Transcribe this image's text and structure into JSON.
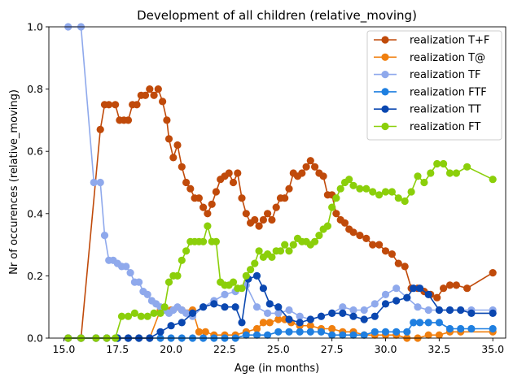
{
  "chart_data": {
    "type": "line",
    "title": "Development of all children (relative_moving)",
    "xlabel": "Age (in months)",
    "ylabel": "Nr of occurences (relative_moving)",
    "xlim": [
      14.3,
      35.6
    ],
    "ylim": [
      0.0,
      1.0
    ],
    "xticks": [
      15.0,
      17.5,
      20.0,
      22.5,
      25.0,
      27.5,
      30.0,
      32.5,
      35.0
    ],
    "xtick_labels": [
      "15.0",
      "17.5",
      "20.0",
      "22.5",
      "25.0",
      "27.5",
      "30.0",
      "32.5",
      "35.0"
    ],
    "yticks": [
      0.0,
      0.2,
      0.4,
      0.6,
      0.8,
      1.0
    ],
    "ytick_labels": [
      "0.0",
      "0.2",
      "0.4",
      "0.6",
      "0.8",
      "1.0"
    ],
    "grid": false,
    "legend_position": "top-right",
    "series": [
      {
        "name": "realization T+F",
        "color": "#c04a0a",
        "x": [
          15.2,
          15.8,
          16.7,
          16.9,
          17.1,
          17.4,
          17.6,
          17.8,
          18.0,
          18.2,
          18.4,
          18.6,
          18.8,
          19.0,
          19.2,
          19.4,
          19.6,
          19.8,
          19.9,
          20.1,
          20.3,
          20.5,
          20.7,
          20.9,
          21.1,
          21.3,
          21.5,
          21.7,
          21.9,
          22.1,
          22.3,
          22.5,
          22.7,
          22.9,
          23.1,
          23.3,
          23.5,
          23.7,
          23.9,
          24.1,
          24.3,
          24.5,
          24.7,
          24.9,
          25.1,
          25.3,
          25.5,
          25.7,
          25.9,
          26.1,
          26.3,
          26.5,
          26.7,
          26.9,
          27.1,
          27.3,
          27.5,
          27.7,
          27.9,
          28.1,
          28.3,
          28.5,
          28.8,
          29.1,
          29.4,
          29.7,
          30.0,
          30.3,
          30.6,
          30.9,
          31.2,
          31.5,
          31.8,
          32.1,
          32.4,
          32.7,
          33.0,
          33.3,
          33.8,
          35.0
        ],
        "y": [
          0.0,
          0.0,
          0.67,
          0.75,
          0.75,
          0.75,
          0.7,
          0.7,
          0.7,
          0.75,
          0.75,
          0.78,
          0.78,
          0.8,
          0.78,
          0.8,
          0.76,
          0.7,
          0.64,
          0.58,
          0.62,
          0.55,
          0.5,
          0.48,
          0.45,
          0.45,
          0.42,
          0.4,
          0.43,
          0.47,
          0.51,
          0.52,
          0.53,
          0.5,
          0.53,
          0.45,
          0.4,
          0.37,
          0.38,
          0.36,
          0.38,
          0.4,
          0.38,
          0.42,
          0.45,
          0.45,
          0.48,
          0.53,
          0.52,
          0.53,
          0.55,
          0.57,
          0.55,
          0.53,
          0.52,
          0.46,
          0.46,
          0.4,
          0.38,
          0.37,
          0.35,
          0.34,
          0.33,
          0.32,
          0.3,
          0.3,
          0.28,
          0.27,
          0.24,
          0.23,
          0.16,
          0.16,
          0.15,
          0.14,
          0.13,
          0.16,
          0.17,
          0.17,
          0.16,
          0.21
        ]
      },
      {
        "name": "realization T@",
        "color": "#f07f0e",
        "x": [
          15.2,
          15.8,
          16.5,
          17.0,
          17.5,
          18.0,
          18.5,
          19.0,
          19.5,
          20.0,
          20.5,
          21.0,
          21.3,
          21.6,
          22.0,
          22.5,
          23.0,
          23.5,
          24.0,
          24.3,
          24.6,
          25.0,
          25.3,
          25.6,
          26.0,
          26.5,
          27.0,
          27.5,
          28.0,
          28.5,
          29.0,
          29.5,
          30.0,
          30.5,
          31.0,
          31.5,
          32.0,
          32.5,
          33.0,
          33.5,
          35.0
        ],
        "y": [
          0.0,
          0.0,
          0.0,
          0.0,
          0.0,
          0.0,
          0.0,
          0.0,
          0.09,
          0.09,
          0.09,
          0.09,
          0.02,
          0.02,
          0.01,
          0.01,
          0.01,
          0.02,
          0.03,
          0.05,
          0.05,
          0.06,
          0.06,
          0.05,
          0.04,
          0.04,
          0.03,
          0.03,
          0.02,
          0.02,
          0.01,
          0.01,
          0.01,
          0.01,
          0.0,
          0.0,
          0.01,
          0.01,
          0.02,
          0.02,
          0.02
        ]
      },
      {
        "name": "realization TF",
        "color": "#8fa9ec",
        "x": [
          15.2,
          15.8,
          16.4,
          16.7,
          16.9,
          17.1,
          17.3,
          17.5,
          17.7,
          17.9,
          18.1,
          18.3,
          18.5,
          18.7,
          18.9,
          19.1,
          19.3,
          19.5,
          19.7,
          19.9,
          20.1,
          20.3,
          20.5,
          20.7,
          21.0,
          21.5,
          22.0,
          22.5,
          23.0,
          23.5,
          24.0,
          24.5,
          25.0,
          25.5,
          26.0,
          26.5,
          27.0,
          27.5,
          28.0,
          28.5,
          29.0,
          29.5,
          30.0,
          30.5,
          31.0,
          31.5,
          32.0,
          32.5,
          33.0,
          33.5,
          34.0,
          35.0
        ],
        "y": [
          1.0,
          1.0,
          0.5,
          0.5,
          0.33,
          0.25,
          0.25,
          0.24,
          0.23,
          0.23,
          0.21,
          0.18,
          0.18,
          0.15,
          0.14,
          0.12,
          0.11,
          0.1,
          0.09,
          0.08,
          0.09,
          0.1,
          0.09,
          0.08,
          0.07,
          0.1,
          0.12,
          0.14,
          0.15,
          0.17,
          0.1,
          0.08,
          0.08,
          0.09,
          0.07,
          0.06,
          0.07,
          0.08,
          0.1,
          0.09,
          0.09,
          0.11,
          0.14,
          0.16,
          0.13,
          0.1,
          0.09,
          0.09,
          0.09,
          0.09,
          0.09,
          0.09
        ]
      },
      {
        "name": "realization FTF",
        "color": "#1f7fe0",
        "x": [
          15.2,
          15.8,
          16.5,
          17.0,
          17.5,
          18.0,
          18.5,
          19.0,
          19.5,
          20.0,
          20.5,
          21.0,
          21.5,
          22.0,
          22.5,
          23.0,
          23.5,
          24.0,
          24.5,
          25.0,
          25.5,
          26.0,
          26.5,
          27.0,
          27.5,
          28.0,
          28.5,
          29.0,
          29.5,
          30.0,
          30.5,
          31.0,
          31.3,
          31.6,
          32.0,
          32.5,
          33.0,
          33.5,
          34.0,
          35.0
        ],
        "y": [
          0.0,
          0.0,
          0.0,
          0.0,
          0.0,
          0.0,
          0.0,
          0.0,
          0.0,
          0.0,
          0.0,
          0.0,
          0.0,
          0.0,
          0.0,
          0.0,
          0.01,
          0.01,
          0.01,
          0.02,
          0.02,
          0.02,
          0.02,
          0.02,
          0.01,
          0.01,
          0.01,
          0.01,
          0.02,
          0.02,
          0.02,
          0.02,
          0.05,
          0.05,
          0.05,
          0.05,
          0.03,
          0.03,
          0.03,
          0.03
        ]
      },
      {
        "name": "realization TT",
        "color": "#0a47b0",
        "x": [
          15.2,
          15.8,
          16.5,
          17.0,
          17.5,
          18.0,
          18.5,
          19.0,
          19.5,
          20.0,
          20.5,
          21.0,
          21.5,
          22.0,
          22.5,
          23.0,
          23.3,
          23.6,
          24.0,
          24.3,
          24.6,
          25.0,
          25.5,
          26.0,
          26.5,
          27.0,
          27.5,
          28.0,
          28.5,
          29.0,
          29.5,
          30.0,
          30.5,
          31.0,
          31.3,
          31.6,
          32.0,
          32.5,
          33.0,
          33.5,
          34.0,
          35.0
        ],
        "y": [
          0.0,
          0.0,
          0.0,
          0.0,
          0.0,
          0.0,
          0.0,
          0.0,
          0.02,
          0.04,
          0.05,
          0.08,
          0.1,
          0.11,
          0.1,
          0.1,
          0.05,
          0.19,
          0.2,
          0.16,
          0.11,
          0.1,
          0.06,
          0.05,
          0.06,
          0.07,
          0.08,
          0.08,
          0.07,
          0.06,
          0.07,
          0.11,
          0.12,
          0.13,
          0.16,
          0.16,
          0.14,
          0.09,
          0.09,
          0.09,
          0.08,
          0.08
        ]
      },
      {
        "name": "realization FT",
        "color": "#8bcf0a",
        "x": [
          15.2,
          15.8,
          16.5,
          17.0,
          17.4,
          17.7,
          18.0,
          18.3,
          18.6,
          18.9,
          19.2,
          19.5,
          19.7,
          19.9,
          20.1,
          20.3,
          20.5,
          20.7,
          20.9,
          21.1,
          21.3,
          21.5,
          21.7,
          21.9,
          22.1,
          22.3,
          22.5,
          22.7,
          22.9,
          23.1,
          23.3,
          23.5,
          23.7,
          23.9,
          24.1,
          24.3,
          24.5,
          24.7,
          24.9,
          25.1,
          25.3,
          25.5,
          25.7,
          25.9,
          26.1,
          26.3,
          26.5,
          26.7,
          26.9,
          27.1,
          27.3,
          27.5,
          27.7,
          27.9,
          28.1,
          28.3,
          28.5,
          28.8,
          29.1,
          29.4,
          29.7,
          30.0,
          30.3,
          30.6,
          30.9,
          31.2,
          31.5,
          31.8,
          32.1,
          32.4,
          32.7,
          33.0,
          33.3,
          33.8,
          35.0
        ],
        "y": [
          0.0,
          0.0,
          0.0,
          0.0,
          0.0,
          0.07,
          0.07,
          0.08,
          0.07,
          0.07,
          0.08,
          0.08,
          0.1,
          0.18,
          0.2,
          0.2,
          0.25,
          0.28,
          0.31,
          0.31,
          0.31,
          0.31,
          0.36,
          0.31,
          0.31,
          0.18,
          0.17,
          0.17,
          0.18,
          0.16,
          0.16,
          0.2,
          0.22,
          0.24,
          0.28,
          0.26,
          0.27,
          0.26,
          0.28,
          0.28,
          0.3,
          0.28,
          0.3,
          0.32,
          0.31,
          0.31,
          0.3,
          0.31,
          0.33,
          0.35,
          0.36,
          0.42,
          0.45,
          0.48,
          0.5,
          0.51,
          0.49,
          0.48,
          0.48,
          0.47,
          0.46,
          0.47,
          0.47,
          0.45,
          0.44,
          0.47,
          0.52,
          0.5,
          0.53,
          0.56,
          0.56,
          0.53,
          0.53,
          0.55,
          0.51
        ]
      }
    ]
  }
}
